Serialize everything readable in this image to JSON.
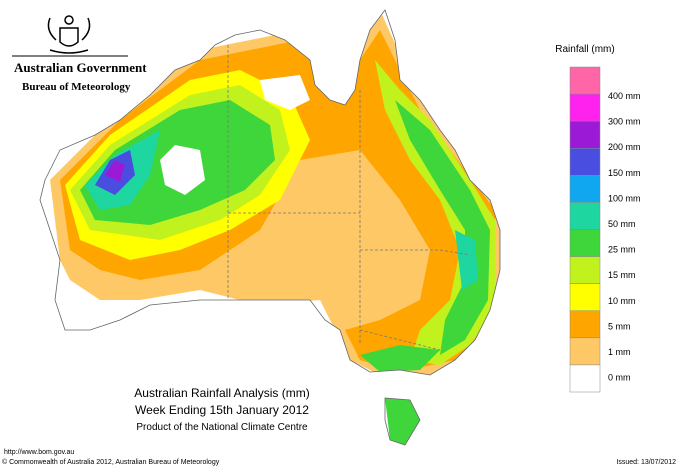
{
  "header": {
    "government": "Australian Government",
    "bureau": "Bureau of Meteorology"
  },
  "legend": {
    "title": "Rainfall (mm)",
    "colors": [
      "#ff66a8",
      "#ff22ee",
      "#9a1ad6",
      "#4a4ee0",
      "#10a6f0",
      "#1ed6a0",
      "#3ed63a",
      "#c2f21e",
      "#ffff00",
      "#ffa500",
      "#ffc866",
      "#ffffff"
    ],
    "labels": [
      "400 mm",
      "300 mm",
      "200 mm",
      "150 mm",
      "100 mm",
      "50 mm",
      "25 mm",
      "15 mm",
      "10 mm",
      "5 mm",
      "1 mm",
      "0 mm"
    ]
  },
  "map_title": {
    "line1": "Australian Rainfall Analysis (mm)",
    "line2": "Week Ending 15th January 2012",
    "line3": "Product of the National Climate Centre"
  },
  "footer": {
    "url": "http://www.bom.gov.au",
    "copyright": "© Commonwealth of Australia 2012, Australian Bureau of Meteorology",
    "issued": "Issued: 13/07/2012"
  }
}
